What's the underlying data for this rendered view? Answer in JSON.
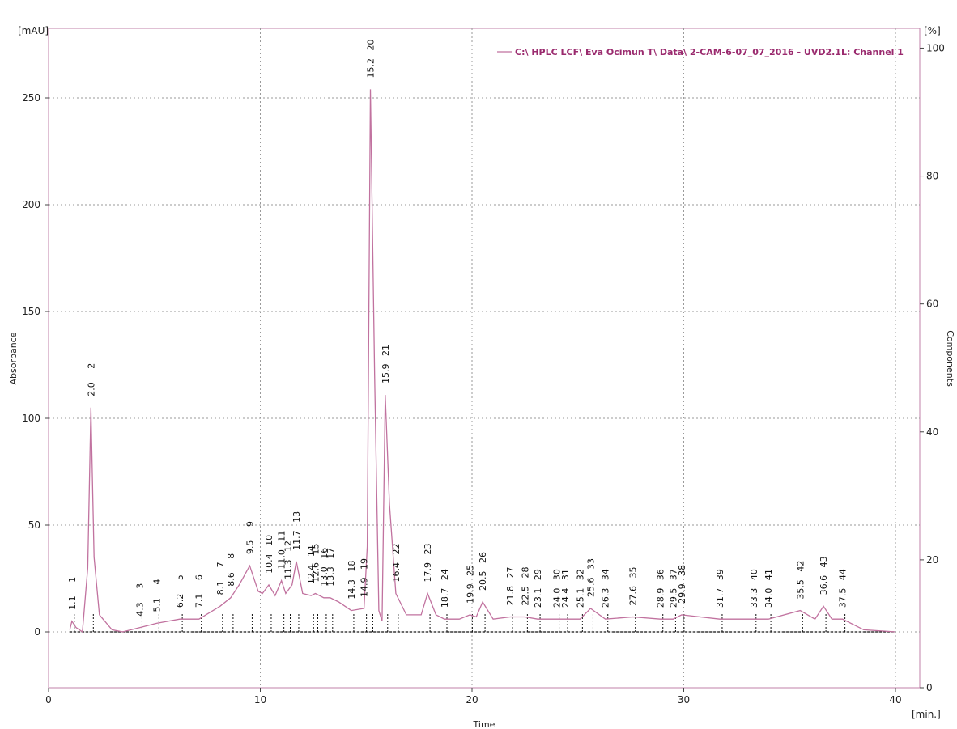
{
  "chart_data": {
    "type": "line",
    "title": "",
    "xlabel": "Time",
    "ylabel": "Absorbance",
    "y2label": "Components",
    "x_unit": "[min.]",
    "y_unit": "[mAU]",
    "y2_unit": "[%]",
    "xlim": [
      0,
      41.5
    ],
    "ylim": [
      -25,
      280
    ],
    "y2lim": [
      0,
      100
    ],
    "x_ticks": [
      0,
      10,
      20,
      30,
      40
    ],
    "y_ticks": [
      0,
      50,
      100,
      150,
      200,
      250
    ],
    "y2_ticks": [
      0,
      20,
      40,
      60,
      80,
      100
    ],
    "grid": true,
    "legend_position": "top-right",
    "series": [
      {
        "name": "C:\\ HPLC LCF\\ Eva Ocimun T\\ Data\\ 2-CAM-6-07_07_2016 - UVD2.1L: Channel 1",
        "color": "#c1729f",
        "x": [
          1.0,
          1.1,
          1.3,
          1.6,
          1.85,
          2.0,
          2.15,
          2.4,
          3.0,
          3.5,
          4.3,
          5.1,
          6.2,
          7.1,
          8.1,
          8.6,
          9.0,
          9.5,
          9.9,
          10.1,
          10.4,
          10.7,
          11.0,
          11.2,
          11.5,
          11.7,
          12.0,
          12.4,
          12.6,
          13.0,
          13.3,
          13.7,
          14.3,
          14.9,
          15.05,
          15.2,
          15.4,
          15.6,
          15.75,
          15.9,
          16.1,
          16.4,
          16.9,
          17.6,
          17.9,
          18.3,
          18.7,
          19.4,
          19.9,
          20.2,
          20.5,
          21.0,
          21.8,
          22.5,
          23.1,
          24.0,
          24.4,
          25.1,
          25.6,
          26.3,
          27.6,
          28.9,
          29.5,
          29.9,
          31.7,
          33.3,
          34.0,
          35.5,
          36.2,
          36.6,
          37.0,
          37.5,
          38.5,
          40.0
        ],
        "y": [
          1,
          5,
          2,
          0,
          30,
          105,
          35,
          8,
          1,
          0,
          2,
          4,
          6,
          6,
          12,
          16,
          22,
          31,
          19,
          18,
          22,
          17,
          24,
          18,
          22,
          33,
          18,
          17,
          18,
          16,
          16,
          14,
          10,
          11,
          40,
          254,
          120,
          10,
          5,
          111,
          60,
          18,
          8,
          8,
          18,
          8,
          6,
          6,
          8,
          7,
          14,
          6,
          7,
          7,
          6,
          6,
          6,
          6,
          11,
          6,
          7,
          6,
          6,
          8,
          6,
          6,
          6,
          10,
          6,
          12,
          6,
          6,
          1,
          0
        ]
      }
    ],
    "peaks": [
      {
        "id": "1",
        "rt": "1.1",
        "x": 1.1
      },
      {
        "id": "2",
        "rt": "2.0",
        "x": 2.0
      },
      {
        "id": "3",
        "rt": "4.3",
        "x": 4.3
      },
      {
        "id": "4",
        "rt": "5.1",
        "x": 5.1
      },
      {
        "id": "5",
        "rt": "6.2",
        "x": 6.2
      },
      {
        "id": "6",
        "rt": "7.1",
        "x": 7.1
      },
      {
        "id": "7",
        "rt": "8.1",
        "x": 8.1
      },
      {
        "id": "8",
        "rt": "8.6",
        "x": 8.6
      },
      {
        "id": "9",
        "rt": "9.5",
        "x": 9.5
      },
      {
        "id": "10",
        "rt": "10.4",
        "x": 10.4
      },
      {
        "id": "11",
        "rt": "11.0",
        "x": 11.0
      },
      {
        "id": "12",
        "rt": "11.3",
        "x": 11.3
      },
      {
        "id": "13",
        "rt": "11.7",
        "x": 11.7
      },
      {
        "id": "14",
        "rt": "12.4",
        "x": 12.4
      },
      {
        "id": "15",
        "rt": "12.6",
        "x": 12.6
      },
      {
        "id": "16",
        "rt": "13.0",
        "x": 13.0
      },
      {
        "id": "17",
        "rt": "13.3",
        "x": 13.3
      },
      {
        "id": "18",
        "rt": "14.3",
        "x": 14.3
      },
      {
        "id": "19",
        "rt": "14.9",
        "x": 14.9
      },
      {
        "id": "20",
        "rt": "15.2",
        "x": 15.2
      },
      {
        "id": "21",
        "rt": "15.9",
        "x": 15.9
      },
      {
        "id": "22",
        "rt": "16.4",
        "x": 16.4
      },
      {
        "id": "23",
        "rt": "17.9",
        "x": 17.9
      },
      {
        "id": "24",
        "rt": "18.7",
        "x": 18.7
      },
      {
        "id": "25",
        "rt": "19.9",
        "x": 19.9
      },
      {
        "id": "26",
        "rt": "20.5",
        "x": 20.5
      },
      {
        "id": "27",
        "rt": "21.8",
        "x": 21.8
      },
      {
        "id": "28",
        "rt": "22.5",
        "x": 22.5
      },
      {
        "id": "29",
        "rt": "23.1",
        "x": 23.1
      },
      {
        "id": "30",
        "rt": "24.0",
        "x": 24.0
      },
      {
        "id": "31",
        "rt": "24.4",
        "x": 24.4
      },
      {
        "id": "32",
        "rt": "25.1",
        "x": 25.1
      },
      {
        "id": "33",
        "rt": "25.6",
        "x": 25.6
      },
      {
        "id": "34",
        "rt": "26.3",
        "x": 26.3
      },
      {
        "id": "35",
        "rt": "27.6",
        "x": 27.6
      },
      {
        "id": "36",
        "rt": "28.9",
        "x": 28.9
      },
      {
        "id": "37",
        "rt": "29.5",
        "x": 29.5
      },
      {
        "id": "38",
        "rt": "29.9",
        "x": 29.9
      },
      {
        "id": "39",
        "rt": "31.7",
        "x": 31.7
      },
      {
        "id": "40",
        "rt": "33.3",
        "x": 33.3
      },
      {
        "id": "41",
        "rt": "34.0",
        "x": 34.0
      },
      {
        "id": "42",
        "rt": "35.5",
        "x": 35.5
      },
      {
        "id": "43",
        "rt": "36.6",
        "x": 36.6
      },
      {
        "id": "44",
        "rt": "37.5",
        "x": 37.5
      }
    ]
  }
}
